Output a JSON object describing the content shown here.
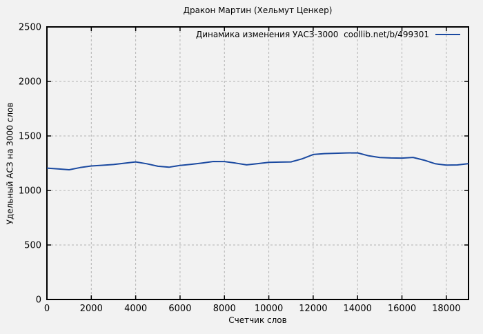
{
  "window": {
    "background": "#f2f2f2"
  },
  "chart_data": {
    "type": "line",
    "title": "Дракон Мартин (Хельмут Ценкер)",
    "legend_label": "Динамика изменения УАСЗ-3000  coollib.net/b/499301",
    "legend_position": "top-right",
    "xlabel": "Счетчик слов",
    "ylabel": "Удельный АСЗ на 3000 слов",
    "xlim": [
      0,
      19000
    ],
    "ylim": [
      0,
      2500
    ],
    "xticks": [
      0,
      2000,
      4000,
      6000,
      8000,
      10000,
      12000,
      14000,
      16000,
      18000
    ],
    "yticks": [
      0,
      500,
      1000,
      1500,
      2000,
      2500
    ],
    "grid": true,
    "grid_color": "#b3b3b3",
    "line_color": "#1a49a0",
    "frame_color": "#000000",
    "series": [
      {
        "name": "Динамика изменения УАСЗ-3000",
        "x": [
          0,
          500,
          1000,
          1500,
          2000,
          2500,
          3000,
          3500,
          4000,
          4500,
          5000,
          5500,
          6000,
          6500,
          7000,
          7500,
          8000,
          8500,
          9000,
          9500,
          10000,
          10500,
          11000,
          11500,
          12000,
          12500,
          13000,
          13500,
          14000,
          14500,
          15000,
          15500,
          16000,
          16500,
          17000,
          17500,
          18000,
          18500,
          19000
        ],
        "values": [
          1205,
          1198,
          1190,
          1210,
          1225,
          1231,
          1238,
          1250,
          1262,
          1245,
          1222,
          1213,
          1230,
          1240,
          1252,
          1266,
          1265,
          1251,
          1235,
          1246,
          1258,
          1260,
          1262,
          1290,
          1330,
          1338,
          1341,
          1344,
          1345,
          1318,
          1302,
          1298,
          1297,
          1303,
          1278,
          1245,
          1232,
          1234,
          1246
        ]
      }
    ]
  }
}
